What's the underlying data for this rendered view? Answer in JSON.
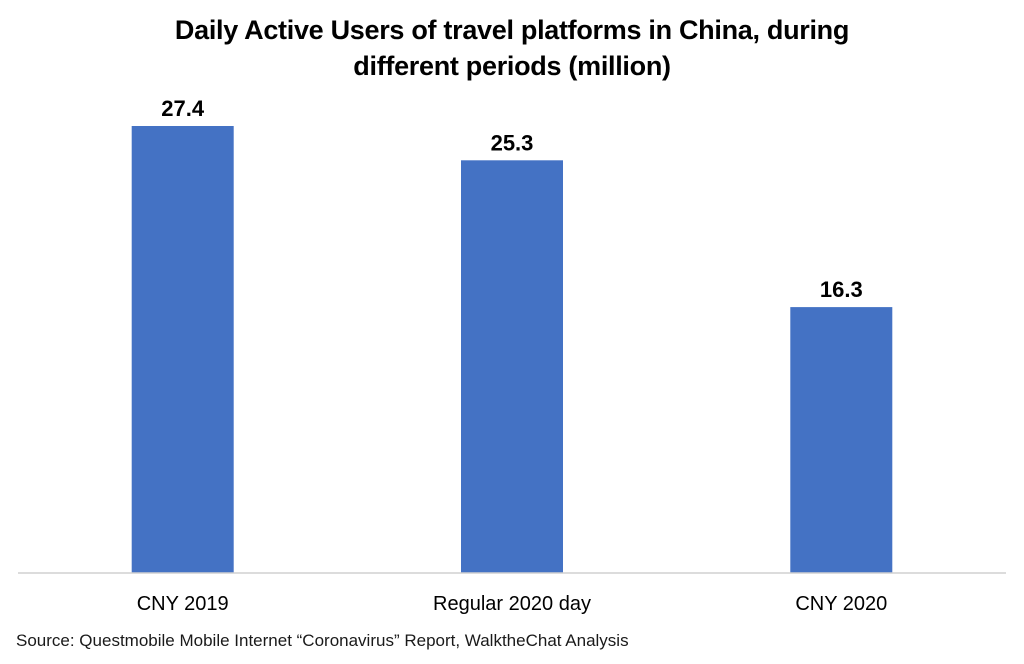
{
  "chart_data": {
    "type": "bar",
    "title_lines": [
      "Daily Active Users of travel platforms in China, during",
      "different periods (million)"
    ],
    "categories": [
      "CNY 2019",
      "Regular 2020 day",
      "CNY 2020"
    ],
    "values": [
      27.4,
      25.3,
      16.3
    ],
    "data_labels": [
      "27.4",
      "25.3",
      "16.3"
    ],
    "xlabel": "",
    "ylabel": "",
    "ylim": [
      0,
      27.4
    ],
    "grid": false,
    "legend": "none",
    "bar_color": "#4472C4"
  },
  "source": "Source: Questmobile Mobile Internet “Coronavirus” Report, WalktheChat Analysis"
}
